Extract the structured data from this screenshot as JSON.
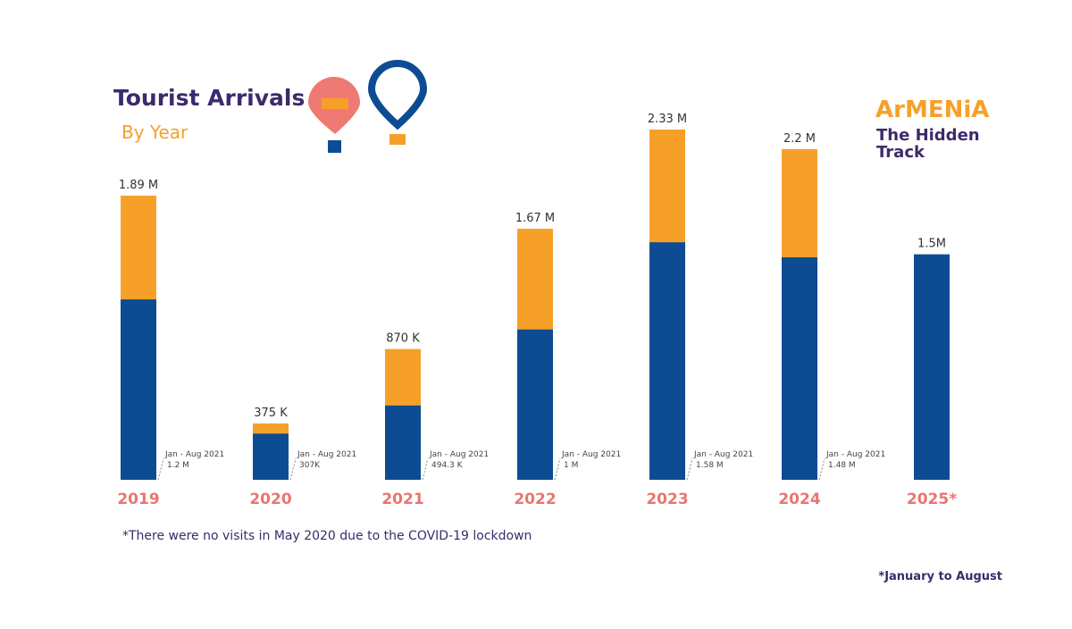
{
  "chart_data": {
    "type": "bar",
    "title": "Tourist Arrivals",
    "subtitle": "By Year",
    "brand": {
      "name": "ArMENiA",
      "tagline_1": "The Hidden",
      "tagline_2": "Track"
    },
    "categories": [
      "2019",
      "2020",
      "2021",
      "2022",
      "2023",
      "2024",
      "2025*"
    ],
    "totals": {
      "color": "#f6a02a",
      "values": [
        1890000,
        375000,
        870000,
        1670000,
        2330000,
        2200000,
        null
      ],
      "value_labels": [
        "1.89 M",
        "375 K",
        "870 K",
        "1.67 M",
        "2.33 M",
        "2.2 M",
        null
      ]
    },
    "series": [
      {
        "color": "#0d4c92",
        "values": [
          1200000,
          307000,
          494300,
          1000000,
          1580000,
          1480000,
          1500000
        ],
        "value_labels": [
          "1.2 M",
          "307K",
          "494.3 K",
          "1 M",
          "1.58 M",
          "1.48 M",
          "1.5M"
        ],
        "period_labels": [
          "Jan - Aug 2021",
          "Jan - Aug 2021",
          "Jan - Aug 2021",
          "Jan - Aug 2021",
          "Jan - Aug 2021",
          "Jan - Aug 2021",
          null
        ]
      }
    ],
    "footnote": "*There were no visits in May 2020 due to the COVID-19 lockdown",
    "note": "*January to August"
  }
}
